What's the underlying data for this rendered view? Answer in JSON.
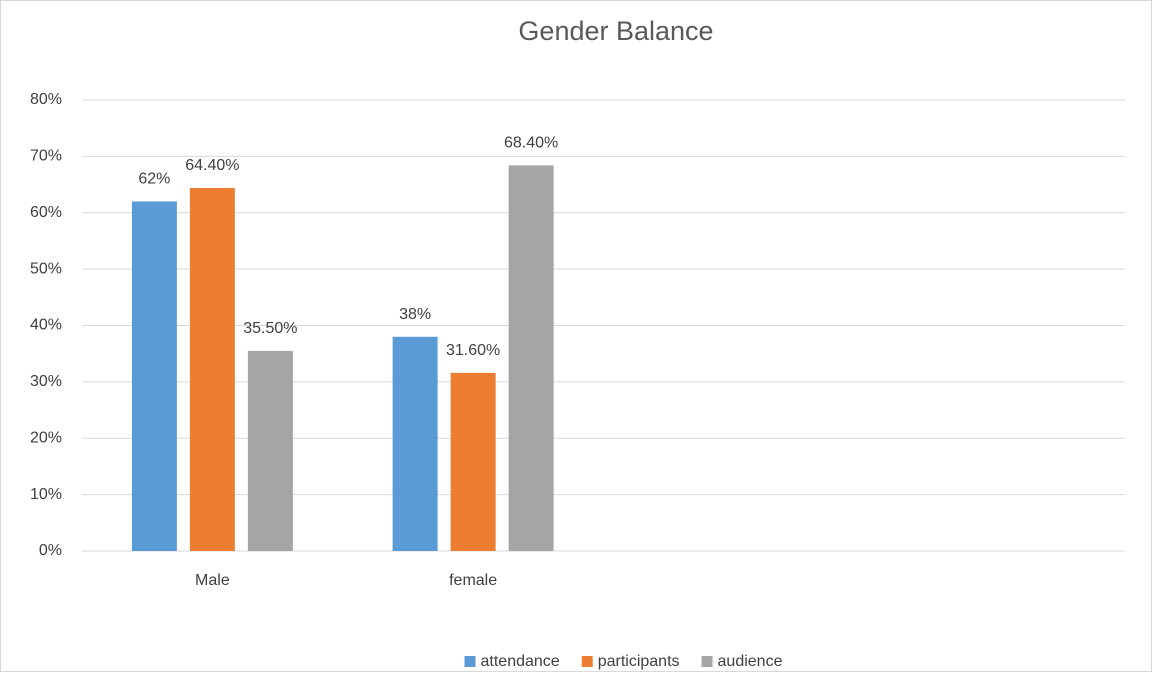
{
  "chart_data": {
    "type": "bar",
    "title": "Gender Balance",
    "categories": [
      "Male",
      "female",
      null,
      null
    ],
    "series": [
      {
        "name": "attendance",
        "color": "#5b9bd5",
        "values": [
          62,
          38,
          null,
          null
        ],
        "value_labels": [
          "62%",
          "38%",
          null,
          null
        ]
      },
      {
        "name": "participants",
        "color": "#ed7d31",
        "values": [
          64.4,
          31.6,
          null,
          null
        ],
        "value_labels": [
          "64.40%",
          "31.60%",
          null,
          null
        ]
      },
      {
        "name": "audience",
        "color": "#a5a5a5",
        "values": [
          35.5,
          68.4,
          null,
          null
        ],
        "value_labels": [
          "35.50%",
          "68.40%",
          null,
          null
        ]
      }
    ],
    "ylim": [
      0,
      80
    ],
    "yticks": [
      {
        "value": 0,
        "label": "0%"
      },
      {
        "value": 10,
        "label": "10%"
      },
      {
        "value": 20,
        "label": "20%"
      },
      {
        "value": 30,
        "label": "30%"
      },
      {
        "value": 40,
        "label": "40%"
      },
      {
        "value": 50,
        "label": "50%"
      },
      {
        "value": 60,
        "label": "60%"
      },
      {
        "value": 70,
        "label": "70%"
      },
      {
        "value": 80,
        "label": "80%"
      }
    ],
    "grid": true,
    "legend": "bottom"
  }
}
